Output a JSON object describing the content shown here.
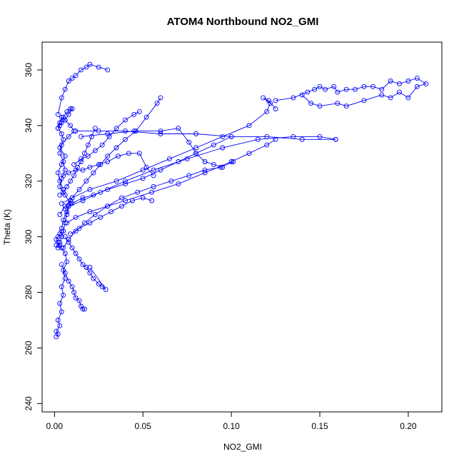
{
  "chart_data": {
    "type": "line",
    "title": "ATOM4 Northbound NO2_GMI",
    "xlabel": "NO2_GMI",
    "ylabel": "Theta (K)",
    "xlim": [
      -0.007,
      0.219
    ],
    "ylim": [
      237,
      370
    ],
    "xticks": [
      0.0,
      0.05,
      0.1,
      0.15,
      0.2
    ],
    "xtick_labels": [
      "0.00",
      "0.05",
      "0.10",
      "0.15",
      "0.20"
    ],
    "yticks": [
      240,
      260,
      280,
      300,
      320,
      340,
      360
    ],
    "ytick_labels": [
      "240",
      "260",
      "280",
      "300",
      "320",
      "340",
      "360"
    ],
    "grid": false,
    "legend": "none",
    "marker": "open-circle",
    "color": "#0000ff",
    "series": [
      {
        "x": [
          0.001,
          0.002,
          0.001,
          0.003,
          0.002,
          0.004,
          0.003,
          0.005,
          0.004,
          0.006,
          0.005,
          0.007,
          0.006,
          0.004,
          0.003,
          0.002,
          0.001,
          0.002,
          0.003,
          0.004
        ],
        "y": [
          264,
          265,
          266,
          268,
          270,
          273,
          276,
          279,
          282,
          285,
          288,
          291,
          294,
          296,
          297,
          298,
          299,
          300,
          301,
          302
        ]
      },
      {
        "x": [
          0.004,
          0.005,
          0.007,
          0.009,
          0.006,
          0.003,
          0.004,
          0.006,
          0.005,
          0.003,
          0.004,
          0.008,
          0.011,
          0.009,
          0.006,
          0.004,
          0.003,
          0.002,
          0.004,
          0.005,
          0.003,
          0.006,
          0.004,
          0.002,
          0.003,
          0.005
        ],
        "y": [
          303,
          306,
          309,
          312,
          315,
          318,
          321,
          324,
          327,
          330,
          333,
          336,
          338,
          340,
          342,
          343,
          341,
          339,
          337,
          335,
          332,
          329,
          326,
          323,
          320,
          317
        ]
      },
      {
        "x": [
          0.003,
          0.006,
          0.01,
          0.014,
          0.018,
          0.022,
          0.026,
          0.03,
          0.035,
          0.04,
          0.046,
          0.052,
          0.058,
          0.06
        ],
        "y": [
          308,
          311,
          314,
          317,
          320,
          323,
          326,
          329,
          332,
          335,
          338,
          343,
          348,
          350
        ]
      },
      {
        "x": [
          0.005,
          0.008,
          0.012,
          0.017,
          0.023,
          0.03,
          0.038,
          0.047,
          0.056,
          0.066,
          0.076,
          0.085,
          0.094,
          0.101
        ],
        "y": [
          296,
          299,
          302,
          305,
          308,
          311,
          314,
          316,
          318,
          320,
          322,
          324,
          325,
          327
        ]
      },
      {
        "x": [
          0.006,
          0.01,
          0.016,
          0.022,
          0.03,
          0.04,
          0.05,
          0.06,
          0.07,
          0.08,
          0.09,
          0.1
        ],
        "y": [
          310,
          312,
          314,
          315,
          317,
          319,
          321,
          324,
          327,
          330,
          333,
          336
        ]
      },
      {
        "x": [
          0.007,
          0.012,
          0.02,
          0.03,
          0.04,
          0.055,
          0.07,
          0.085,
          0.1,
          0.11,
          0.12,
          0.125
        ],
        "y": [
          305,
          307,
          309,
          311,
          313,
          316,
          319,
          323,
          327,
          330,
          333,
          335
        ]
      },
      {
        "x": [
          0.008,
          0.016,
          0.026,
          0.04,
          0.056,
          0.075,
          0.095,
          0.115,
          0.135,
          0.15,
          0.159
        ],
        "y": [
          311,
          313,
          316,
          320,
          324,
          328,
          332,
          335,
          336,
          336,
          335
        ]
      },
      {
        "x": [
          0.012,
          0.025,
          0.04,
          0.06,
          0.08,
          0.1,
          0.12,
          0.14,
          0.159
        ],
        "y": [
          338,
          338,
          338,
          337,
          337,
          336,
          336,
          335,
          335
        ]
      },
      {
        "x": [
          0.015,
          0.03,
          0.045,
          0.06,
          0.07,
          0.076,
          0.08,
          0.085,
          0.09,
          0.095
        ],
        "y": [
          336,
          337,
          338,
          338,
          339,
          334,
          330,
          327,
          326,
          325
        ]
      },
      {
        "x": [
          0.004,
          0.01,
          0.02,
          0.035,
          0.05,
          0.065,
          0.08,
          0.095,
          0.11,
          0.12,
          0.122,
          0.118,
          0.121,
          0.125
        ],
        "y": [
          312,
          314,
          317,
          320,
          324,
          328,
          332,
          336,
          340,
          345,
          348,
          350,
          349,
          346
        ]
      },
      {
        "x": [
          0.125,
          0.135,
          0.143,
          0.147,
          0.15,
          0.153,
          0.158,
          0.16,
          0.165,
          0.17,
          0.175,
          0.18,
          0.185,
          0.19,
          0.195,
          0.2,
          0.205,
          0.21,
          0.205,
          0.2,
          0.195,
          0.19,
          0.185,
          0.175,
          0.165,
          0.16,
          0.15,
          0.145,
          0.14
        ],
        "y": [
          349,
          350,
          352,
          353,
          354,
          353,
          354,
          352,
          353,
          353,
          354,
          354,
          353,
          356,
          355,
          356,
          357,
          355,
          354,
          350,
          352,
          350,
          351,
          349,
          347,
          348,
          347,
          348,
          351
        ]
      },
      {
        "x": [
          0.002,
          0.004,
          0.006,
          0.008,
          0.01,
          0.012,
          0.015,
          0.018,
          0.02,
          0.025,
          0.03
        ],
        "y": [
          344,
          350,
          353,
          356,
          357,
          358,
          360,
          361,
          362,
          361,
          360
        ]
      },
      {
        "x": [
          0.003,
          0.005,
          0.007,
          0.009,
          0.01,
          0.008,
          0.006,
          0.004,
          0.003,
          0.002
        ],
        "y": [
          341,
          343,
          345,
          346,
          346,
          344,
          342,
          341,
          340,
          339
        ]
      },
      {
        "x": [
          0.006,
          0.008,
          0.01,
          0.012,
          0.014,
          0.016,
          0.018,
          0.02,
          0.022,
          0.025,
          0.027,
          0.029,
          0.02
        ],
        "y": [
          300,
          298,
          296,
          294,
          292,
          290,
          289,
          287,
          285,
          283,
          282,
          281,
          289
        ]
      },
      {
        "x": [
          0.004,
          0.006,
          0.008,
          0.01,
          0.011,
          0.012,
          0.014,
          0.015,
          0.016,
          0.017
        ],
        "y": [
          290,
          287,
          284,
          282,
          280,
          278,
          277,
          275,
          274,
          274
        ]
      },
      {
        "x": [
          0.005,
          0.008,
          0.012,
          0.016,
          0.02,
          0.025,
          0.03,
          0.036,
          0.042,
          0.048,
          0.052,
          0.056
        ],
        "y": [
          322,
          323,
          324,
          324,
          325,
          326,
          327,
          329,
          330,
          330,
          325,
          322
        ]
      },
      {
        "x": [
          0.009,
          0.014,
          0.02,
          0.026,
          0.032,
          0.038,
          0.044,
          0.05,
          0.055
        ],
        "y": [
          301,
          303,
          305,
          307,
          309,
          311,
          313,
          314,
          313
        ]
      },
      {
        "x": [
          0.011,
          0.015,
          0.019,
          0.023,
          0.027,
          0.031,
          0.035,
          0.04,
          0.045,
          0.048
        ],
        "y": [
          326,
          328,
          329,
          331,
          333,
          336,
          339,
          342,
          344,
          345
        ]
      },
      {
        "x": [
          0.003,
          0.005,
          0.007,
          0.009,
          0.011,
          0.013,
          0.015,
          0.017,
          0.019,
          0.021,
          0.023
        ],
        "y": [
          315,
          316,
          318,
          320,
          322,
          325,
          327,
          330,
          333,
          336,
          339
        ]
      },
      {
        "x": [
          0.001,
          0.002,
          0.003,
          0.004,
          0.005,
          0.006,
          0.007,
          0.008,
          0.009
        ],
        "y": [
          297,
          296,
          298,
          300,
          302,
          305,
          308,
          311,
          313
        ]
      }
    ]
  }
}
